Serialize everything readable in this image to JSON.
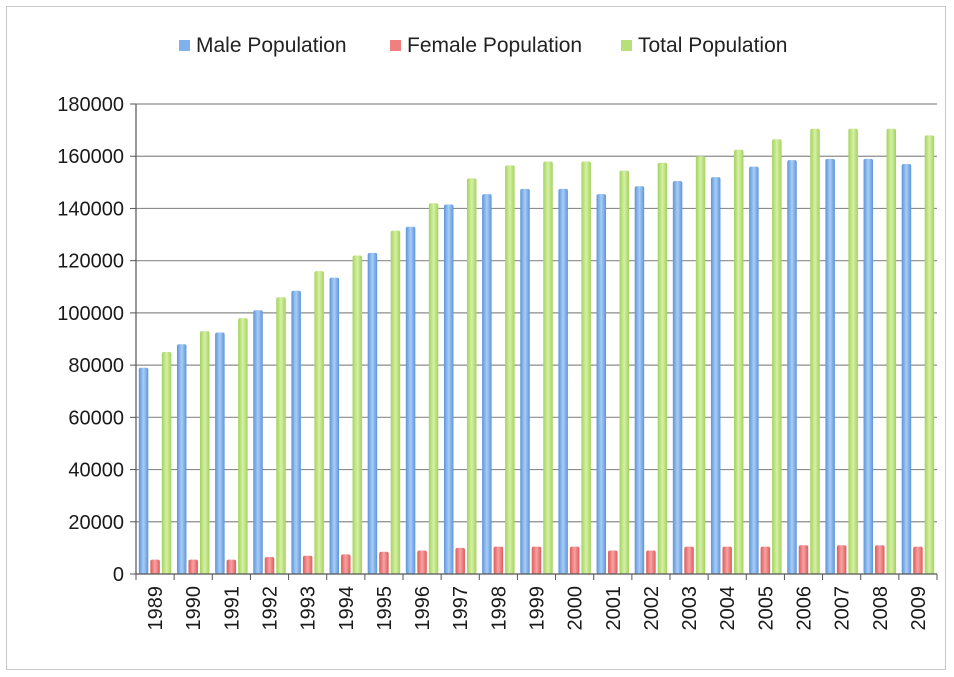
{
  "chart_data": {
    "type": "bar",
    "title": "",
    "xlabel": "",
    "ylabel": "",
    "categories": [
      "1989",
      "1990",
      "1991",
      "1992",
      "1993",
      "1994",
      "1995",
      "1996",
      "1997",
      "1998",
      "1999",
      "2000",
      "2001",
      "2002",
      "2003",
      "2004",
      "2005",
      "2006",
      "2007",
      "2008",
      "2009"
    ],
    "series": [
      {
        "name": "Male Population",
        "color": "#7fb2ec",
        "values": [
          79000,
          88000,
          92500,
          101000,
          108500,
          113500,
          123000,
          133000,
          141500,
          145500,
          147500,
          147500,
          145500,
          148500,
          150500,
          152000,
          156000,
          158500,
          159000,
          159000,
          157000
        ]
      },
      {
        "name": "Female Population",
        "color": "#f08080",
        "values": [
          5500,
          5500,
          5500,
          6500,
          7000,
          7500,
          8500,
          9000,
          10000,
          10500,
          10500,
          10500,
          9000,
          9000,
          10500,
          10500,
          10500,
          11000,
          11000,
          11000,
          10500
        ]
      },
      {
        "name": "Total Population",
        "color": "#b8e07a",
        "values": [
          85000,
          93000,
          98000,
          106000,
          116000,
          122000,
          131500,
          142000,
          151500,
          156500,
          158000,
          158000,
          154500,
          157500,
          160000,
          162500,
          166500,
          170500,
          170500,
          170500,
          168000
        ]
      }
    ],
    "yticks": [
      0,
      20000,
      40000,
      60000,
      80000,
      100000,
      120000,
      140000,
      160000,
      180000
    ],
    "ylim": [
      0,
      180000
    ],
    "grid": true,
    "legend": "top"
  }
}
